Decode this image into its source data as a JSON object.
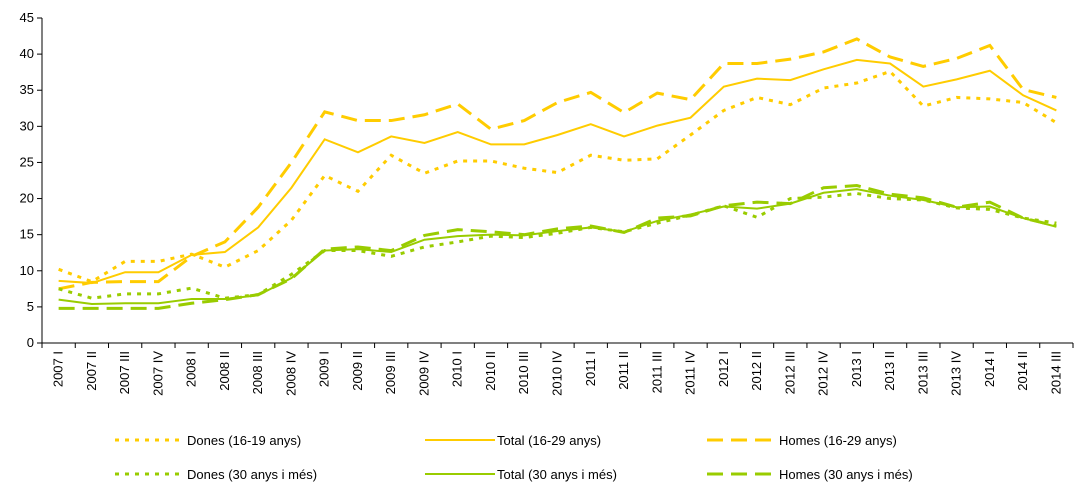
{
  "chart_data": {
    "type": "line",
    "categories": [
      "2007 I",
      "2007 II",
      "2007 III",
      "2007 IV",
      "2008 I",
      "2008 II",
      "2008 III",
      "2008 IV",
      "2009 I",
      "2009 II",
      "2009 III",
      "2009 IV",
      "2010 I",
      "2010 II",
      "2010 III",
      "2010 IV",
      "2011 I",
      "2011 II",
      "2011 III",
      "2011 IV",
      "2012 I",
      "2012 II",
      "2012 III",
      "2012 IV",
      "2013 I",
      "2013 II",
      "2013 III",
      "2013 IV",
      "2014 I",
      "2014 II",
      "2014 III"
    ],
    "series": [
      {
        "name": "Dones (16-19 anys)",
        "color": "#ffcc00",
        "dash": "dotted",
        "values": [
          10.2,
          8.5,
          11.3,
          11.3,
          12.3,
          10.5,
          12.8,
          17,
          23.2,
          21,
          26,
          23.5,
          25.2,
          25.2,
          24.2,
          23.6,
          26,
          25.3,
          25.5,
          28.8,
          32.2,
          34,
          33,
          35.3,
          36,
          37.6,
          32.8,
          34,
          33.8,
          33.3,
          30.5
        ]
      },
      {
        "name": "Total (16-29 anys)",
        "color": "#ffcc00",
        "dash": "solid",
        "values": [
          8.6,
          8.3,
          9.8,
          9.8,
          12.2,
          12.6,
          16,
          21.5,
          28.2,
          26.4,
          28.6,
          27.7,
          29.2,
          27.5,
          27.5,
          28.8,
          30.3,
          28.6,
          30.1,
          31.2,
          35.5,
          36.6,
          36.4,
          37.9,
          39.2,
          38.7,
          35.5,
          36.5,
          37.7,
          34.3,
          32.2
        ]
      },
      {
        "name": "Homes (16-29 anys)",
        "color": "#ffcc00",
        "dash": "dashed",
        "values": [
          7.5,
          8.4,
          8.5,
          8.5,
          12,
          14,
          18.8,
          25,
          32,
          30.8,
          30.8,
          31.6,
          33.1,
          29.6,
          30.8,
          33.3,
          34.7,
          31.9,
          34.6,
          33.7,
          38.7,
          38.7,
          39.3,
          40.3,
          42.1,
          39.6,
          38.3,
          39.4,
          41.2,
          35.1,
          34
        ]
      },
      {
        "name": "Dones (30 anys i més)",
        "color": "#99cc00",
        "dash": "dotted",
        "values": [
          7.5,
          6.2,
          6.8,
          6.8,
          7.6,
          6.2,
          6.7,
          9.5,
          12.8,
          12.8,
          12,
          13.3,
          14,
          14.8,
          14.6,
          15.2,
          16,
          15.4,
          16.6,
          17.7,
          19,
          17.4,
          20,
          20.2,
          20.7,
          20,
          19.8,
          18.7,
          18.5,
          17.3,
          16.6
        ]
      },
      {
        "name": "Total (30 anys i més)",
        "color": "#99cc00",
        "dash": "solid",
        "values": [
          6,
          5.4,
          5.5,
          5.5,
          6.1,
          6.1,
          6.6,
          9,
          12.8,
          13,
          12.6,
          14.3,
          14.8,
          15,
          14.9,
          15.5,
          16,
          15.4,
          16.9,
          17.8,
          18.9,
          18.6,
          19.3,
          20.8,
          21.3,
          20.4,
          19.8,
          18.8,
          18.9,
          17.3,
          16.1
        ]
      },
      {
        "name": "Homes (30 anys i més)",
        "color": "#99cc00",
        "dash": "dashed",
        "values": [
          4.8,
          4.8,
          4.8,
          4.8,
          5.5,
          6,
          6.7,
          8.9,
          13,
          13.3,
          12.8,
          14.9,
          15.7,
          15.4,
          15,
          15.8,
          16.2,
          15.3,
          17.3,
          17.6,
          19,
          19.5,
          19.3,
          21.5,
          21.8,
          20.6,
          20.1,
          18.8,
          19.5,
          17.3,
          16.2
        ]
      }
    ],
    "ylim": [
      0,
      45
    ],
    "yticks": [
      0,
      5,
      10,
      15,
      20,
      25,
      30,
      35,
      40,
      45
    ],
    "grid": false
  }
}
